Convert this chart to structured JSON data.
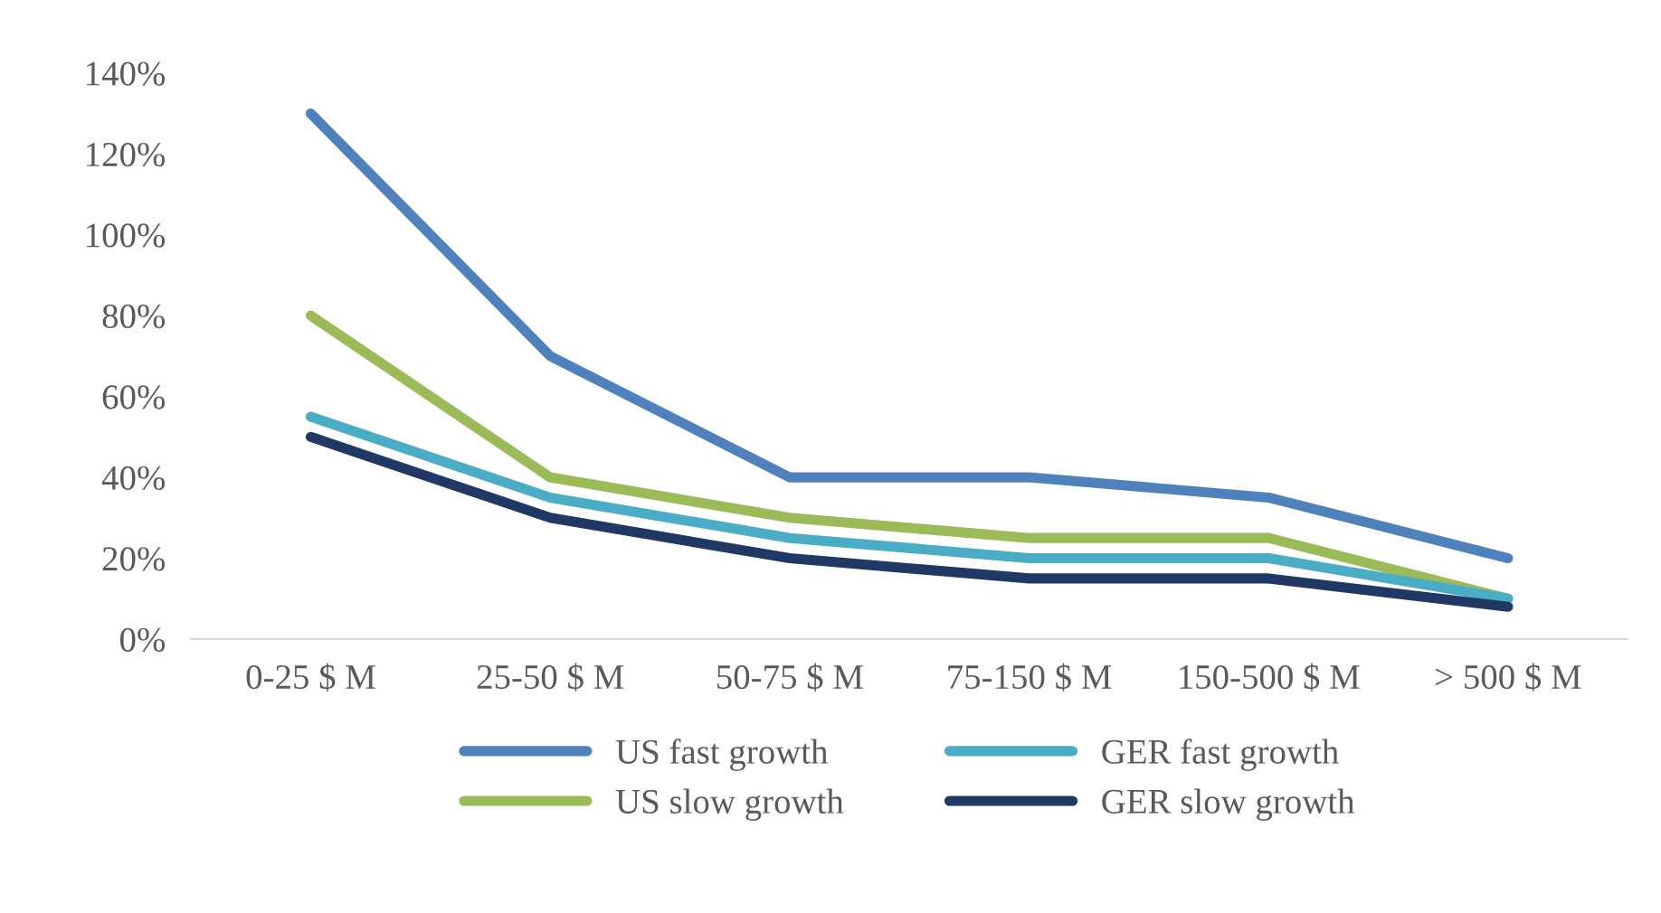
{
  "chart_data": {
    "type": "line",
    "categories": [
      "0-25 $ M",
      "25-50 $ M",
      "50-75 $ M",
      "75-150 $ M",
      "150-500 $ M",
      "> 500 $ M"
    ],
    "series": [
      {
        "name": "US fast growth",
        "color": "#4f81bd",
        "values": [
          130,
          70,
          40,
          40,
          35,
          20
        ]
      },
      {
        "name": "US slow growth",
        "color": "#9bbb59",
        "values": [
          80,
          40,
          30,
          25,
          25,
          10
        ]
      },
      {
        "name": "GER fast growth",
        "color": "#4bacc6",
        "values": [
          55,
          35,
          25,
          20,
          20,
          10
        ]
      },
      {
        "name": "GER slow growth",
        "color": "#1f3864",
        "values": [
          50,
          30,
          20,
          15,
          15,
          8
        ]
      }
    ],
    "ylim": [
      0,
      140
    ],
    "yticks": [
      {
        "value": 0,
        "label": "0%"
      },
      {
        "value": 20,
        "label": "20%"
      },
      {
        "value": 40,
        "label": "40%"
      },
      {
        "value": 60,
        "label": "60%"
      },
      {
        "value": 80,
        "label": "80%"
      },
      {
        "value": 100,
        "label": "100%"
      },
      {
        "value": 120,
        "label": "120%"
      },
      {
        "value": 140,
        "label": "140%"
      }
    ],
    "grid": false,
    "legend": "bottom",
    "marker": "none",
    "line_style": "solid"
  }
}
